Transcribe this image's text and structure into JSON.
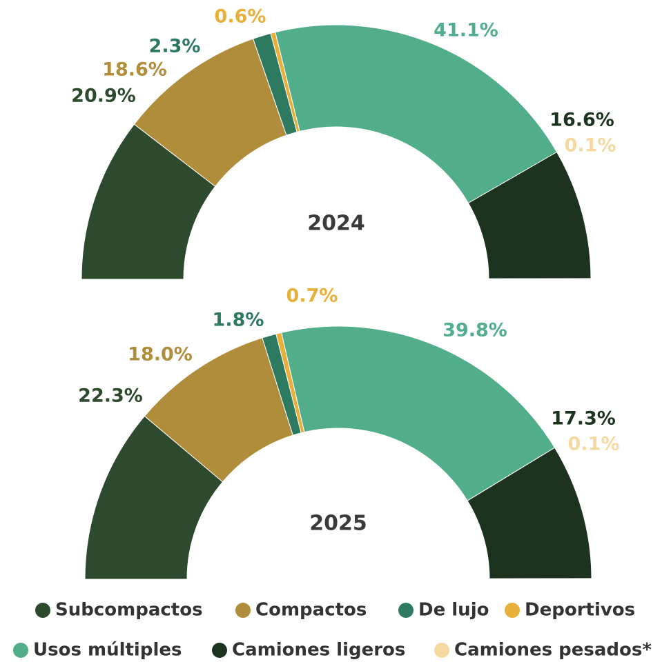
{
  "chart_data": [
    {
      "type": "semidonut",
      "title": "2024",
      "categories": [
        "Subcompactos",
        "Compactos",
        "De lujo",
        "Deportivos",
        "Usos múltiples",
        "Camiones ligeros",
        "Camiones pesados*"
      ],
      "colors": [
        "#2d4a2e",
        "#b08d3a",
        "#2e7a60",
        "#e8b03a",
        "#52ae8a",
        "#1c3320",
        "#f6d9a0"
      ],
      "values": [
        20.9,
        18.6,
        2.3,
        0.6,
        41.1,
        16.6,
        0.1
      ],
      "value_labels": [
        "20.9%",
        "18.6%",
        "2.3%",
        "0.6%",
        "41.1%",
        "16.6%",
        "0.1%"
      ]
    },
    {
      "type": "semidonut",
      "title": "2025",
      "categories": [
        "Subcompactos",
        "Compactos",
        "De lujo",
        "Deportivos",
        "Usos múltiples",
        "Camiones ligeros",
        "Camiones pesados*"
      ],
      "colors": [
        "#2d4a2e",
        "#b08d3a",
        "#2e7a60",
        "#e8b03a",
        "#52ae8a",
        "#1c3320",
        "#f6d9a0"
      ],
      "values": [
        22.3,
        18.0,
        1.8,
        0.7,
        39.8,
        17.3,
        0.1
      ],
      "value_labels": [
        "22.3%",
        "18.0%",
        "1.8%",
        "0.7%",
        "39.8%",
        "17.3%",
        "0.1%"
      ]
    }
  ]
}
